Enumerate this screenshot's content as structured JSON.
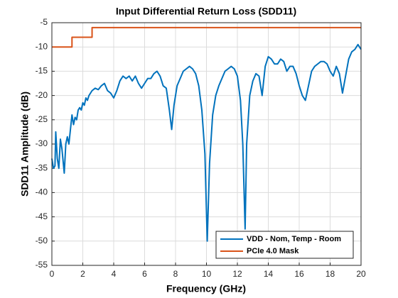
{
  "chart_data": {
    "type": "line",
    "title": "Input Differential Return Loss (SDD11)",
    "xlabel": "Frequency (GHz)",
    "ylabel": "SDD11 Amplitude (dB)",
    "xlim": [
      0,
      20
    ],
    "xticks": [
      0,
      2,
      4,
      6,
      8,
      10,
      12,
      14,
      16,
      18,
      20
    ],
    "ylim": [
      -55,
      -5
    ],
    "yticks": [
      -5,
      -10,
      -15,
      -20,
      -25,
      -30,
      -35,
      -40,
      -45,
      -50,
      -55
    ],
    "grid": true,
    "legend": "lower right",
    "series": [
      {
        "name": "VDD - Nom, Temp - Room",
        "color": "#0072bd",
        "x": [
          0,
          0.1,
          0.2,
          0.25,
          0.35,
          0.45,
          0.55,
          0.65,
          0.8,
          0.9,
          1.0,
          1.1,
          1.2,
          1.3,
          1.4,
          1.5,
          1.6,
          1.7,
          1.8,
          1.9,
          2.0,
          2.1,
          2.2,
          2.3,
          2.4,
          2.6,
          2.8,
          3.0,
          3.2,
          3.4,
          3.6,
          3.8,
          4.0,
          4.2,
          4.4,
          4.6,
          4.8,
          5.0,
          5.2,
          5.4,
          5.6,
          5.8,
          6.0,
          6.2,
          6.4,
          6.6,
          6.8,
          7.0,
          7.2,
          7.4,
          7.6,
          7.75,
          7.9,
          8.1,
          8.3,
          8.5,
          8.7,
          8.9,
          9.1,
          9.3,
          9.5,
          9.7,
          9.9,
          10.05,
          10.2,
          10.4,
          10.6,
          10.8,
          11.0,
          11.2,
          11.4,
          11.6,
          11.8,
          12.0,
          12.2,
          12.35,
          12.5,
          12.6,
          12.8,
          13.0,
          13.2,
          13.4,
          13.6,
          13.8,
          14.0,
          14.2,
          14.4,
          14.6,
          14.8,
          15.0,
          15.2,
          15.4,
          15.6,
          15.8,
          16.0,
          16.2,
          16.4,
          16.6,
          16.8,
          17.0,
          17.2,
          17.4,
          17.6,
          17.8,
          18.0,
          18.2,
          18.4,
          18.6,
          18.8,
          19.0,
          19.2,
          19.4,
          19.6,
          19.8,
          19.9,
          20.0
        ],
        "values": [
          -33,
          -35,
          -34.5,
          -27.5,
          -33,
          -35,
          -29,
          -31,
          -36,
          -30,
          -28.5,
          -30,
          -27,
          -24,
          -26,
          -24.5,
          -25,
          -23,
          -22.5,
          -23,
          -21.5,
          -22,
          -20.5,
          -21,
          -20,
          -19,
          -18.5,
          -18.8,
          -18,
          -17.5,
          -19,
          -19.5,
          -20.5,
          -19,
          -17,
          -16,
          -16.5,
          -16,
          -17,
          -16,
          -17.5,
          -18.5,
          -17.5,
          -16.5,
          -16.5,
          -15.5,
          -15,
          -16,
          -18,
          -18.5,
          -23,
          -27,
          -22,
          -18,
          -16.5,
          -15,
          -14.5,
          -14,
          -14.5,
          -15.5,
          -18,
          -23,
          -32,
          -50,
          -34,
          -24,
          -20,
          -18,
          -16.5,
          -15,
          -14.5,
          -14,
          -14.5,
          -16,
          -21,
          -30,
          -47.5,
          -30,
          -20,
          -17,
          -15.5,
          -16,
          -20,
          -14,
          -12,
          -12.5,
          -13.5,
          -13.5,
          -12.5,
          -13,
          -15,
          -14,
          -14,
          -15.5,
          -18,
          -20,
          -21,
          -18,
          -15,
          -14,
          -13.5,
          -13,
          -13,
          -13.5,
          -15,
          -16,
          -14,
          -15.5,
          -19.5,
          -16,
          -12.5,
          -11,
          -10.5,
          -9.5,
          -10,
          -10.5
        ]
      },
      {
        "name": "PCIe 4.0 Mask",
        "color": "#d95319",
        "x": [
          0,
          1.3,
          1.3,
          2.6,
          2.6,
          20
        ],
        "values": [
          -10,
          -10,
          -8,
          -8,
          -6,
          -6
        ]
      }
    ]
  }
}
